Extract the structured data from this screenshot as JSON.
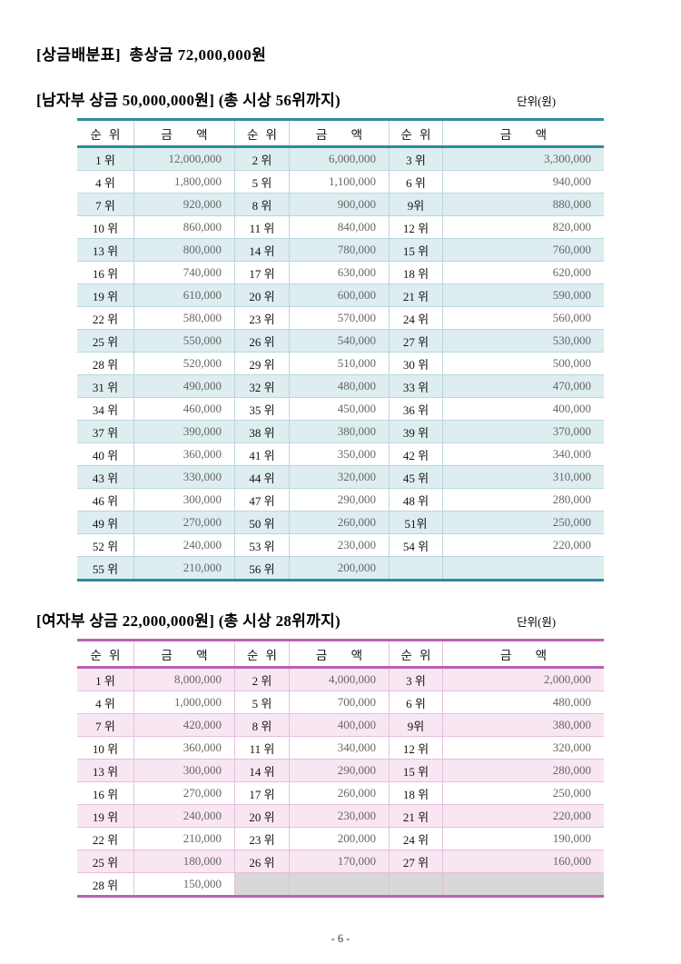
{
  "page": {
    "title": "[상금배분표]  총상금 72,000,000원",
    "footer": "- 6 -"
  },
  "men": {
    "heading": "[남자부 상금 50,000,000원] (총 시상 56위까지)",
    "unit_label": "단위(원)",
    "columns": [
      "순 위",
      "금 액",
      "순 위",
      "금 액",
      "순 위",
      "금 액"
    ],
    "rows": [
      [
        "1 위",
        "12,000,000",
        "2 위",
        "6,000,000",
        "3 위",
        "3,300,000"
      ],
      [
        "4 위",
        "1,800,000",
        "5 위",
        "1,100,000",
        "6 위",
        "940,000"
      ],
      [
        "7 위",
        "920,000",
        "8 위",
        "900,000",
        "9위",
        "880,000"
      ],
      [
        "10 위",
        "860,000",
        "11 위",
        "840,000",
        "12 위",
        "820,000"
      ],
      [
        "13 위",
        "800,000",
        "14 위",
        "780,000",
        "15 위",
        "760,000"
      ],
      [
        "16 위",
        "740,000",
        "17 위",
        "630,000",
        "18 위",
        "620,000"
      ],
      [
        "19 위",
        "610,000",
        "20 위",
        "600,000",
        "21 위",
        "590,000"
      ],
      [
        "22 위",
        "580,000",
        "23 위",
        "570,000",
        "24 위",
        "560,000"
      ],
      [
        "25 위",
        "550,000",
        "26 위",
        "540,000",
        "27 위",
        "530,000"
      ],
      [
        "28 위",
        "520,000",
        "29 위",
        "510,000",
        "30 위",
        "500,000"
      ],
      [
        "31 위",
        "490,000",
        "32 위",
        "480,000",
        "33 위",
        "470,000"
      ],
      [
        "34 위",
        "460,000",
        "35 위",
        "450,000",
        "36 위",
        "400,000"
      ],
      [
        "37 위",
        "390,000",
        "38 위",
        "380,000",
        "39 위",
        "370,000"
      ],
      [
        "40 위",
        "360,000",
        "41 위",
        "350,000",
        "42 위",
        "340,000"
      ],
      [
        "43 위",
        "330,000",
        "44 위",
        "320,000",
        "45 위",
        "310,000"
      ],
      [
        "46 위",
        "300,000",
        "47 위",
        "290,000",
        "48 위",
        "280,000"
      ],
      [
        "49 위",
        "270,000",
        "50 위",
        "260,000",
        "51위",
        "250,000"
      ],
      [
        "52 위",
        "240,000",
        "53 위",
        "230,000",
        "54 위",
        "220,000"
      ],
      [
        "55 위",
        "210,000",
        "56 위",
        "200,000",
        "",
        ""
      ]
    ],
    "empty_cells_gray": false
  },
  "women": {
    "heading": "[여자부 상금 22,000,000원] (총 시상 28위까지)",
    "unit_label": "단위(원)",
    "columns": [
      "순 위",
      "금 액",
      "순 위",
      "금 액",
      "순 위",
      "금 액"
    ],
    "rows": [
      [
        "1 위",
        "8,000,000",
        "2 위",
        "4,000,000",
        "3 위",
        "2,000,000"
      ],
      [
        "4 위",
        "1,000,000",
        "5 위",
        "700,000",
        "6 위",
        "480,000"
      ],
      [
        "7 위",
        "420,000",
        "8 위",
        "400,000",
        "9위",
        "380,000"
      ],
      [
        "10 위",
        "360,000",
        "11 위",
        "340,000",
        "12 위",
        "320,000"
      ],
      [
        "13 위",
        "300,000",
        "14 위",
        "290,000",
        "15 위",
        "280,000"
      ],
      [
        "16 위",
        "270,000",
        "17 위",
        "260,000",
        "18 위",
        "250,000"
      ],
      [
        "19 위",
        "240,000",
        "20 위",
        "230,000",
        "21 위",
        "220,000"
      ],
      [
        "22 위",
        "210,000",
        "23 위",
        "200,000",
        "24 위",
        "190,000"
      ],
      [
        "25 위",
        "180,000",
        "26 위",
        "170,000",
        "27 위",
        "160,000"
      ],
      [
        "28 위",
        "150,000",
        "",
        "",
        "",
        ""
      ]
    ],
    "empty_cells_gray": true
  },
  "colors": {
    "men_accent": "#2e8a9d",
    "men_row": "#ddedf0",
    "men_line": "#b9d7de",
    "women_accent": "#bd5fb3",
    "women_row": "#f8e6f2",
    "women_line": "#e6bedd",
    "gray_cell": "#d8d8d8"
  }
}
